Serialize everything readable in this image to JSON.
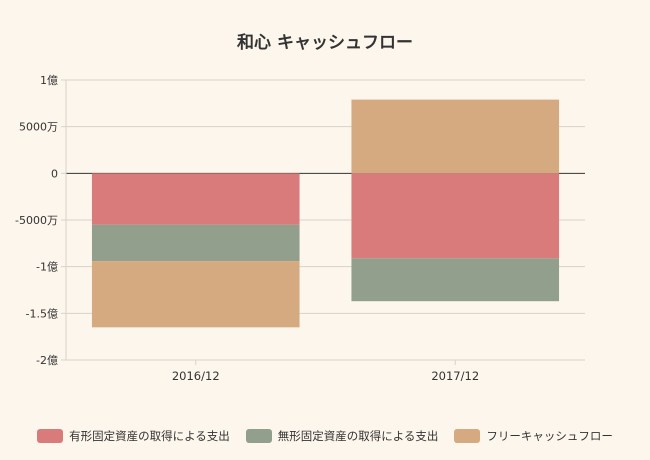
{
  "colors": {
    "background": "#fdf6ec",
    "grid": "#d6d2cc",
    "zero_line": "#333333",
    "axis_text": "#333333"
  },
  "chart_data": {
    "type": "bar",
    "stacked": true,
    "title": "和心 キャッシュフロー",
    "xlabel": "",
    "ylabel": "",
    "categories": [
      "2016/12",
      "2017/12"
    ],
    "ylim": [
      -200000000,
      100000000
    ],
    "yticks": [
      {
        "value": 100000000,
        "label": "1億"
      },
      {
        "value": 50000000,
        "label": "5000万"
      },
      {
        "value": 0,
        "label": "0"
      },
      {
        "value": -50000000,
        "label": "-5000万"
      },
      {
        "value": -100000000,
        "label": "-1億"
      },
      {
        "value": -150000000,
        "label": "-1.5億"
      },
      {
        "value": -200000000,
        "label": "-2億"
      }
    ],
    "grid": true,
    "legend_position": "bottom",
    "series": [
      {
        "name": "有形固定資産の取得による支出",
        "color": "#d97b7b",
        "values": [
          -55000000,
          -91000000
        ]
      },
      {
        "name": "無形固定資産の取得による支出",
        "color": "#939f8d",
        "values": [
          -39000000,
          -46000000
        ]
      },
      {
        "name": "フリーキャッシュフロー",
        "color": "#d6aa80",
        "values": [
          -71000000,
          79000000
        ]
      }
    ]
  }
}
